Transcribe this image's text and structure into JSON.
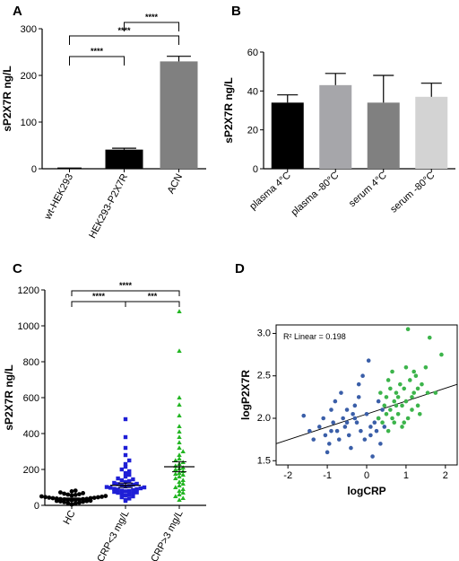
{
  "chart_data": [
    {
      "panel": "A",
      "type": "bar",
      "categories": [
        "wt-HEK293",
        "HEK293-P2X7R",
        "ACN"
      ],
      "values": [
        1,
        41,
        230
      ],
      "errors": [
        0.5,
        3,
        11
      ],
      "colors": [
        "#000000",
        "#000000",
        "#808080"
      ],
      "ylabel": "sP2X7R ng/L",
      "ylim": [
        0,
        300
      ],
      "yticks": [
        "0",
        "100",
        "200",
        "300"
      ],
      "significance": [
        {
          "from": 0,
          "to": 1,
          "label": "****"
        },
        {
          "from": 0,
          "to": 2,
          "label": "****"
        },
        {
          "from": 1,
          "to": 2,
          "label": "****"
        }
      ]
    },
    {
      "panel": "B",
      "type": "bar",
      "categories": [
        "plasma 4°C",
        "plasma -80°C",
        "serum 4°C",
        "serum -80°C"
      ],
      "values": [
        34,
        43,
        34,
        37
      ],
      "errors": [
        4,
        6,
        14,
        7
      ],
      "colors": [
        "#000000",
        "#a6a6aa",
        "#808080",
        "#d3d3d3"
      ],
      "ylabel": "sP2X7R ng/L",
      "ylim": [
        0,
        60
      ],
      "yticks": [
        "0",
        "20",
        "40",
        "60"
      ]
    },
    {
      "panel": "C",
      "type": "scatter",
      "categories": [
        "HC",
        "CRP<3 mg/L",
        "CRP>3 mg/L"
      ],
      "ylabel": "sP2X7R ng/L",
      "ylim": [
        0,
        1200
      ],
      "yticks": [
        "0",
        "200",
        "400",
        "600",
        "800",
        "1000",
        "1200"
      ],
      "series": [
        {
          "marker": "circle",
          "color": "#000000",
          "mean": 38,
          "sem": 3,
          "values": [
            5,
            10,
            12,
            15,
            18,
            20,
            22,
            24,
            25,
            26,
            28,
            30,
            30,
            32,
            33,
            35,
            35,
            36,
            38,
            40,
            40,
            42,
            43,
            45,
            46,
            48,
            50,
            52,
            55,
            58,
            60,
            62,
            65,
            68,
            72,
            78,
            82
          ]
        },
        {
          "marker": "square",
          "color": "#1f1fd6",
          "mean": 112,
          "sem": 12,
          "values": [
            25,
            30,
            38,
            45,
            50,
            55,
            60,
            62,
            65,
            70,
            72,
            75,
            78,
            80,
            82,
            85,
            88,
            90,
            92,
            95,
            98,
            100,
            102,
            105,
            108,
            110,
            115,
            118,
            120,
            125,
            130,
            135,
            140,
            145,
            150,
            160,
            170,
            180,
            190,
            200,
            215,
            230,
            250,
            280,
            320,
            380,
            480
          ]
        },
        {
          "marker": "triangle",
          "color": "#22b522",
          "mean": 215,
          "sem": 28,
          "values": [
            30,
            40,
            50,
            60,
            70,
            80,
            90,
            100,
            110,
            120,
            130,
            140,
            150,
            160,
            170,
            175,
            180,
            190,
            200,
            205,
            210,
            220,
            230,
            240,
            250,
            260,
            280,
            300,
            320,
            350,
            380,
            410,
            440,
            500,
            560,
            600,
            860,
            1080
          ]
        }
      ],
      "significance": [
        {
          "from": 0,
          "to": 1,
          "label": "****"
        },
        {
          "from": 0,
          "to": 2,
          "label": "****"
        },
        {
          "from": 1,
          "to": 2,
          "label": "***"
        }
      ]
    },
    {
      "panel": "D",
      "type": "scatter",
      "xlabel": "logCRP",
      "ylabel": "logP2X7R",
      "xlim": [
        -2.3,
        2.3
      ],
      "ylim": [
        1.45,
        3.1
      ],
      "xticks": [
        "-2",
        "-1",
        "0",
        "1",
        "2"
      ],
      "yticks": [
        "1.5",
        "2.0",
        "2.5",
        "3.0"
      ],
      "annotation": "R² Linear = 0.198",
      "fit_line": {
        "x": [
          -2.3,
          2.3
        ],
        "y": [
          1.7,
          2.4
        ]
      },
      "series": [
        {
          "color": "#3a5ea8",
          "points": [
            [
              -1.6,
              2.03
            ],
            [
              -1.45,
              1.85
            ],
            [
              -1.35,
              1.75
            ],
            [
              -1.2,
              1.9
            ],
            [
              -1.1,
              2.0
            ],
            [
              -1.05,
              1.8
            ],
            [
              -0.95,
              1.7
            ],
            [
              -0.9,
              2.1
            ],
            [
              -0.85,
              1.95
            ],
            [
              -0.8,
              2.2
            ],
            [
              -0.75,
              1.85
            ],
            [
              -0.7,
              1.75
            ],
            [
              -0.65,
              2.3
            ],
            [
              -0.6,
              2.0
            ],
            [
              -0.55,
              1.9
            ],
            [
              -0.5,
              2.1
            ],
            [
              -0.45,
              1.8
            ],
            [
              -0.4,
              1.65
            ],
            [
              -0.35,
              2.05
            ],
            [
              -0.3,
              2.0
            ],
            [
              -0.25,
              1.95
            ],
            [
              -0.2,
              2.25
            ],
            [
              -0.15,
              1.85
            ],
            [
              -0.1,
              2.5
            ],
            [
              -0.05,
              1.75
            ],
            [
              0.0,
              2.05
            ],
            [
              0.05,
              2.68
            ],
            [
              0.1,
              1.9
            ],
            [
              0.15,
              1.55
            ],
            [
              0.2,
              1.95
            ],
            [
              0.25,
              1.85
            ],
            [
              0.3,
              2.0
            ],
            [
              0.35,
              1.7
            ],
            [
              0.4,
              2.1
            ],
            [
              0.45,
              1.9
            ],
            [
              -0.3,
              2.15
            ],
            [
              -0.5,
              1.95
            ],
            [
              -0.9,
              1.85
            ],
            [
              0.1,
              1.8
            ],
            [
              0.3,
              2.2
            ],
            [
              -1.0,
              1.6
            ],
            [
              -0.2,
              2.4
            ]
          ]
        },
        {
          "color": "#3cb44b",
          "points": [
            [
              0.3,
              2.0
            ],
            [
              0.35,
              2.3
            ],
            [
              0.4,
              1.95
            ],
            [
              0.45,
              2.15
            ],
            [
              0.5,
              2.25
            ],
            [
              0.5,
              2.05
            ],
            [
              0.55,
              1.85
            ],
            [
              0.6,
              2.35
            ],
            [
              0.6,
              2.1
            ],
            [
              0.65,
              2.55
            ],
            [
              0.7,
              2.2
            ],
            [
              0.7,
              1.95
            ],
            [
              0.75,
              2.3
            ],
            [
              0.8,
              2.05
            ],
            [
              0.8,
              2.25
            ],
            [
              0.85,
              2.4
            ],
            [
              0.9,
              2.15
            ],
            [
              0.9,
              1.9
            ],
            [
              0.95,
              2.35
            ],
            [
              1.0,
              2.2
            ],
            [
              1.0,
              2.6
            ],
            [
              1.05,
              2.0
            ],
            [
              1.05,
              3.05
            ],
            [
              1.1,
              2.45
            ],
            [
              1.15,
              2.25
            ],
            [
              1.15,
              2.1
            ],
            [
              1.2,
              2.3
            ],
            [
              1.25,
              2.5
            ],
            [
              1.3,
              2.35
            ],
            [
              1.3,
              2.15
            ],
            [
              1.35,
              2.05
            ],
            [
              1.4,
              2.4
            ],
            [
              1.5,
              2.6
            ],
            [
              1.55,
              2.3
            ],
            [
              1.6,
              2.95
            ],
            [
              1.75,
              2.3
            ],
            [
              1.9,
              2.75
            ],
            [
              0.55,
              2.45
            ],
            [
              0.75,
              2.15
            ],
            [
              0.95,
              1.95
            ],
            [
              1.2,
              2.55
            ],
            [
              0.65,
              2.0
            ]
          ]
        }
      ]
    }
  ]
}
